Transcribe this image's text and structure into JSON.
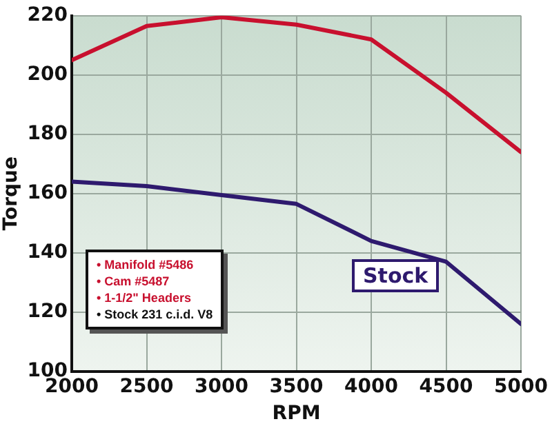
{
  "chart_data": {
    "type": "line",
    "xlabel": "RPM",
    "ylabel": "Torque",
    "x": [
      2000,
      2500,
      3000,
      3500,
      4000,
      4500,
      5000
    ],
    "series": [
      {
        "color": "#c8102e",
        "values": [
          205,
          216.5,
          219.5,
          217,
          212,
          194,
          174
        ]
      },
      {
        "name": "Stock",
        "color": "#2e1a6e",
        "values": [
          164,
          162.5,
          159.5,
          156.5,
          144,
          137,
          116
        ]
      }
    ],
    "xlim": [
      2000,
      5000
    ],
    "xticks": [
      2000,
      2500,
      3000,
      3500,
      4000,
      4500,
      5000
    ],
    "ylim": [
      100,
      220
    ],
    "yticks": [
      100,
      120,
      140,
      160,
      180,
      200,
      220
    ],
    "grid": true,
    "marker": "none",
    "line_style": "solid",
    "annotations": [
      "• Manifold #5486",
      "• Cam #5487",
      "• 1-1/2\" Headers",
      "• Stock 231 c.i.d. V8"
    ]
  }
}
